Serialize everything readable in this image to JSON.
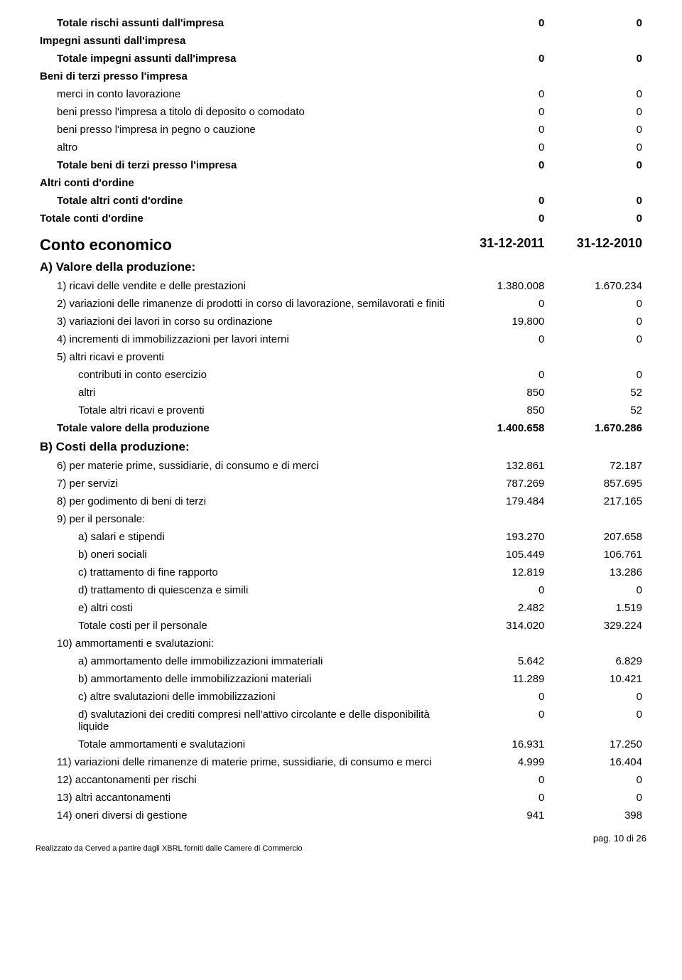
{
  "top": {
    "rows": [
      {
        "label": "Totale rischi assunti dall'impresa",
        "v1": "0",
        "v2": "0",
        "class": "bold ind1"
      },
      {
        "label": "Impegni assunti dall'impresa",
        "v1": "",
        "v2": "",
        "class": "bold"
      },
      {
        "label": "Totale impegni assunti dall'impresa",
        "v1": "0",
        "v2": "0",
        "class": "bold ind1"
      },
      {
        "label": "Beni di terzi presso l'impresa",
        "v1": "",
        "v2": "",
        "class": "bold"
      },
      {
        "label": "merci in conto lavorazione",
        "v1": "0",
        "v2": "0",
        "class": "ind1"
      },
      {
        "label": "beni presso l'impresa a titolo di deposito o comodato",
        "v1": "0",
        "v2": "0",
        "class": "ind1"
      },
      {
        "label": "beni presso l'impresa in pegno o cauzione",
        "v1": "0",
        "v2": "0",
        "class": "ind1"
      },
      {
        "label": "altro",
        "v1": "0",
        "v2": "0",
        "class": "ind1"
      },
      {
        "label": "Totale beni di terzi presso l'impresa",
        "v1": "0",
        "v2": "0",
        "class": "bold ind1"
      },
      {
        "label": "Altri conti d'ordine",
        "v1": "",
        "v2": "",
        "class": "bold"
      },
      {
        "label": "Totale altri conti d'ordine",
        "v1": "0",
        "v2": "0",
        "class": "bold ind1"
      },
      {
        "label": "Totale conti d'ordine",
        "v1": "0",
        "v2": "0",
        "class": "bold"
      }
    ]
  },
  "section": {
    "title": "Conto economico",
    "date1": "31-12-2011",
    "date2": "31-12-2010"
  },
  "groupA": {
    "title": "A) Valore della produzione:",
    "rows": [
      {
        "label": "1) ricavi delle vendite e delle prestazioni",
        "v1": "1.380.008",
        "v2": "1.670.234",
        "class": "ind1"
      },
      {
        "label": "2) variazioni delle rimanenze di prodotti in corso di lavorazione, semilavorati e finiti",
        "v1": "0",
        "v2": "0",
        "class": "ind1"
      },
      {
        "label": "3) variazioni dei lavori in corso su ordinazione",
        "v1": "19.800",
        "v2": "0",
        "class": "ind1"
      },
      {
        "label": "4) incrementi di immobilizzazioni per lavori interni",
        "v1": "0",
        "v2": "0",
        "class": "ind1"
      },
      {
        "label": "5) altri ricavi e proventi",
        "v1": "",
        "v2": "",
        "class": "ind1"
      },
      {
        "label": "contributi in conto esercizio",
        "v1": "0",
        "v2": "0",
        "class": "ind2"
      },
      {
        "label": "altri",
        "v1": "850",
        "v2": "52",
        "class": "ind2"
      },
      {
        "label": "Totale altri ricavi e proventi",
        "v1": "850",
        "v2": "52",
        "class": "ind2"
      },
      {
        "label": "Totale valore della produzione",
        "v1": "1.400.658",
        "v2": "1.670.286",
        "class": "bold ind1"
      }
    ]
  },
  "groupB": {
    "title": "B) Costi della produzione:",
    "rows": [
      {
        "label": "6) per materie prime, sussidiarie, di consumo e di merci",
        "v1": "132.861",
        "v2": "72.187",
        "class": "ind1"
      },
      {
        "label": "7) per servizi",
        "v1": "787.269",
        "v2": "857.695",
        "class": "ind1"
      },
      {
        "label": "8) per godimento di beni di terzi",
        "v1": "179.484",
        "v2": "217.165",
        "class": "ind1"
      },
      {
        "label": "9) per il personale:",
        "v1": "",
        "v2": "",
        "class": "ind1"
      },
      {
        "label": "a) salari e stipendi",
        "v1": "193.270",
        "v2": "207.658",
        "class": "ind2"
      },
      {
        "label": "b) oneri sociali",
        "v1": "105.449",
        "v2": "106.761",
        "class": "ind2"
      },
      {
        "label": "c) trattamento di fine rapporto",
        "v1": "12.819",
        "v2": "13.286",
        "class": "ind2"
      },
      {
        "label": "d) trattamento di quiescenza e simili",
        "v1": "0",
        "v2": "0",
        "class": "ind2"
      },
      {
        "label": "e) altri costi",
        "v1": "2.482",
        "v2": "1.519",
        "class": "ind2"
      },
      {
        "label": "Totale costi per il personale",
        "v1": "314.020",
        "v2": "329.224",
        "class": "ind2"
      },
      {
        "label": "10) ammortamenti e svalutazioni:",
        "v1": "",
        "v2": "",
        "class": "ind1"
      },
      {
        "label": "a) ammortamento delle immobilizzazioni immateriali",
        "v1": "5.642",
        "v2": "6.829",
        "class": "ind2"
      },
      {
        "label": "b) ammortamento delle immobilizzazioni materiali",
        "v1": "11.289",
        "v2": "10.421",
        "class": "ind2"
      },
      {
        "label": "c) altre svalutazioni delle immobilizzazioni",
        "v1": "0",
        "v2": "0",
        "class": "ind2"
      },
      {
        "label": "d) svalutazioni dei crediti compresi nell'attivo circolante e delle disponibilità liquide",
        "v1": "0",
        "v2": "0",
        "class": "ind2"
      },
      {
        "label": "Totale ammortamenti e svalutazioni",
        "v1": "16.931",
        "v2": "17.250",
        "class": "ind2"
      },
      {
        "label": "11) variazioni delle rimanenze di materie prime, sussidiarie, di consumo e merci",
        "v1": "4.999",
        "v2": "16.404",
        "class": "ind1"
      },
      {
        "label": "12) accantonamenti per rischi",
        "v1": "0",
        "v2": "0",
        "class": "ind1"
      },
      {
        "label": "13) altri accantonamenti",
        "v1": "0",
        "v2": "0",
        "class": "ind1"
      },
      {
        "label": "14) oneri diversi di gestione",
        "v1": "941",
        "v2": "398",
        "class": "ind1"
      }
    ]
  },
  "footer": {
    "page": "pag. 10 di 26",
    "credit": "Realizzato da Cerved a partire dagli XBRL forniti dalle Camere di Commercio"
  }
}
